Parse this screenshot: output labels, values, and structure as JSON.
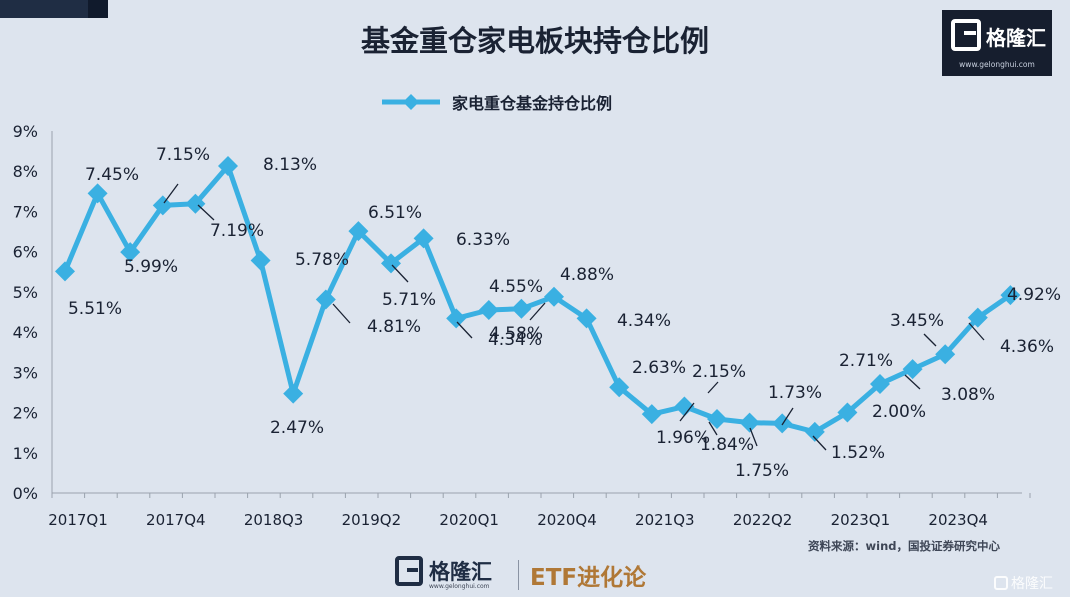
{
  "header": {
    "title": "基金重仓家电板块持仓比例",
    "logo_name": "格隆汇",
    "logo_url": "www.gelonghui.com"
  },
  "chart_data": {
    "type": "line",
    "title": "基金重仓家电板块持仓比例",
    "xlabel": "",
    "ylabel": "",
    "legend_position": "top",
    "series_color": "#3ab0e2",
    "marker": "diamond",
    "x": [
      "2017Q1",
      "2017Q2",
      "2017Q3",
      "2017Q4",
      "2018Q1",
      "2018Q2",
      "2018Q3",
      "2018Q4",
      "2019Q1",
      "2019Q2",
      "2019Q3",
      "2019Q4",
      "2020Q1",
      "2020Q2",
      "2020Q3",
      "2020Q4",
      "2021Q1",
      "2021Q2",
      "2021Q3",
      "2021Q4",
      "2022Q1",
      "2022Q2",
      "2022Q3",
      "2022Q4",
      "2023Q1",
      "2023Q2",
      "2023Q3",
      "2023Q4",
      "2024Q1",
      "2024Q2"
    ],
    "tick_labels": [
      "2017Q1",
      "2017Q4",
      "2018Q3",
      "2019Q2",
      "2020Q1",
      "2020Q4",
      "2021Q3",
      "2022Q2",
      "2023Q1",
      "2023Q4"
    ],
    "series": [
      {
        "name": "家电重仓基金持仓比例",
        "values": [
          5.51,
          7.45,
          5.99,
          7.15,
          7.19,
          8.13,
          5.78,
          2.47,
          4.81,
          6.51,
          5.71,
          6.33,
          4.34,
          4.55,
          4.58,
          4.88,
          4.34,
          2.63,
          1.96,
          2.15,
          1.84,
          1.75,
          1.73,
          1.52,
          2.0,
          2.71,
          3.08,
          3.45,
          4.36,
          4.92
        ]
      }
    ],
    "data_labels": [
      "5.51%",
      "7.45%",
      "5.99%",
      "7.15%",
      "7.19%",
      "8.13%",
      "5.78%",
      "2.47%",
      "4.81%",
      "6.51%",
      "5.71%",
      "6.33%",
      "4.34%",
      "4.55%",
      "4.58%",
      "4.88%",
      "4.34%",
      "2.63%",
      "1.96%",
      "2.15%",
      "1.84%",
      "1.75%",
      "1.73%",
      "1.52%",
      "2.00%",
      "2.71%",
      "3.08%",
      "3.45%",
      "4.36%",
      "4.92%"
    ],
    "y_ticks": [
      "0%",
      "1%",
      "2%",
      "3%",
      "4%",
      "5%",
      "6%",
      "7%",
      "8%",
      "9%"
    ],
    "ylim": [
      0,
      9
    ],
    "grid": false
  },
  "source": "资料来源：wind，国投证券研究中心",
  "footer": {
    "logo_name": "格隆汇",
    "logo_url": "www.gelonghui.com",
    "tagline": "ETF进化论"
  },
  "watermark": "格隆汇"
}
